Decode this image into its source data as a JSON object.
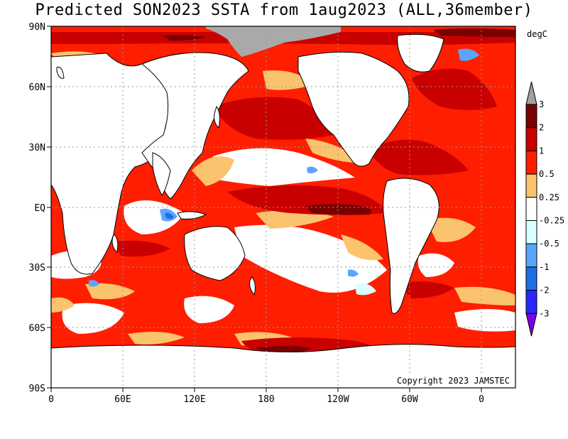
{
  "title": "Predicted SON2023 SSTA from 1aug2023 (ALL,36member)",
  "units": "degC",
  "copyright": "Copyright 2023 JAMSTEC",
  "lat_ticks": [
    "90N",
    "60N",
    "30N",
    "EQ",
    "30S",
    "60S",
    "90S"
  ],
  "lon_ticks": [
    "0",
    "60E",
    "120E",
    "180",
    "120W",
    "60W",
    "0"
  ],
  "colorbar": {
    "labels": [
      "3",
      "2",
      "1",
      "0.5",
      "0.25",
      "-0.25",
      "-0.5",
      "-1",
      "-2",
      "-3"
    ],
    "colors": [
      "#a0a0a0",
      "#780000",
      "#c80000",
      "#ff1e00",
      "#fcc36e",
      "#ffffff",
      "#d9ffff",
      "#5aa5ff",
      "#1e6ee6",
      "#2828ff",
      "#7800e6"
    ]
  },
  "colors": {
    "land": "#ffffff",
    "sea_ice": "#a9a9a9",
    "background": "#ffffff"
  }
}
